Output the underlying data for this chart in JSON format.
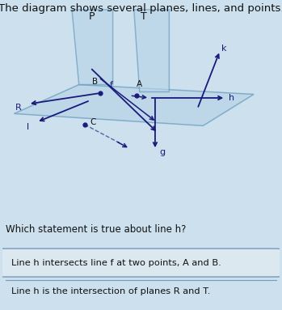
{
  "title": "The diagram shows several planes, lines, and points.",
  "title_fontsize": 9.5,
  "bg_color": "#cce0ed",
  "plane_face": "#b8d4e8",
  "plane_edge": "#6699bb",
  "line_color": "#1a1a7a",
  "answer1": "Line h intersects line f at two points, A and B.",
  "answer2": "Line h is the intersection of planes R and T.",
  "question": "Which statement is true about line h?",
  "ans1_box_color": "#dce8f0",
  "ans1_edge_color": "#7799bb",
  "ans2_box_color": "#cce0ed",
  "text_color": "#111111"
}
